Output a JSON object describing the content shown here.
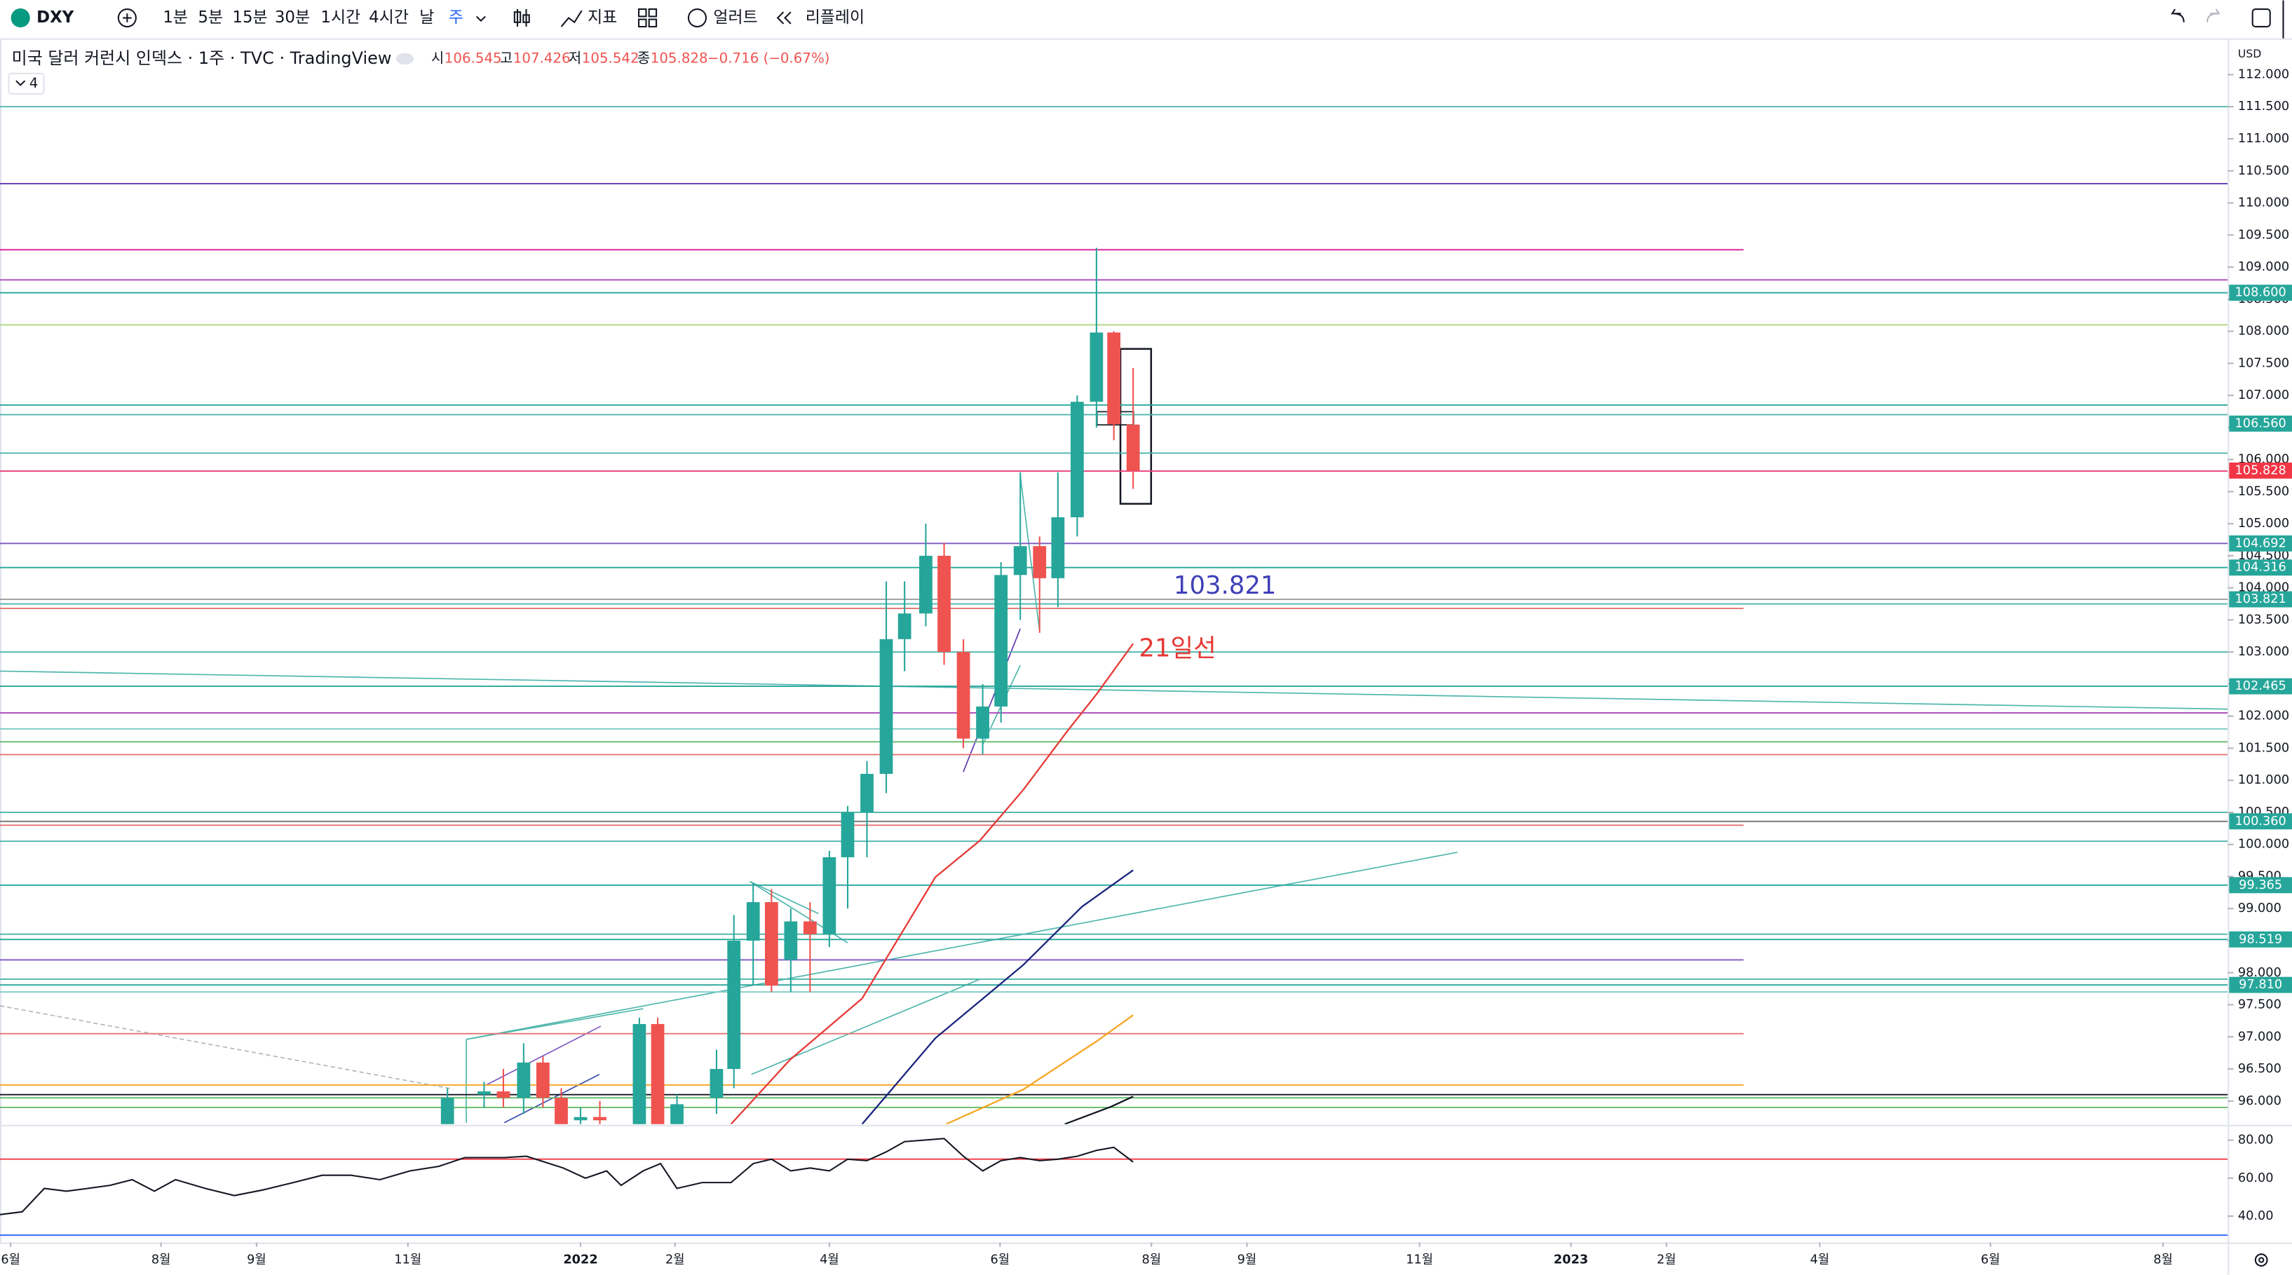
{
  "toolbar": {
    "symbol": "DXY",
    "intervals": [
      "1분",
      "5분",
      "15분",
      "30분",
      "1시간",
      "4시간",
      "날",
      "주"
    ],
    "selected": "주",
    "indicators": "지표",
    "alerts": "얼러트",
    "replay": "리플레이"
  },
  "legend": {
    "title": "미국 달러 커런시 인덱스 · 1주 · TVC · TradingView",
    "ohlc": [
      {
        "label": "시",
        "value": "106.545"
      },
      {
        "label": "고",
        "value": "107.426"
      },
      {
        "label": "저",
        "value": "105.542"
      },
      {
        "label": "종",
        "value": "105.828"
      }
    ],
    "change": "−0.716 (−0.67%)",
    "indicator_count": "4"
  },
  "chart_data": [
    {
      "type": "candlestick",
      "currency": "USD",
      "x": [
        2021.862,
        2021.9,
        2021.92,
        2021.941,
        2021.961,
        2021.98,
        2022,
        2022.02,
        2022.061,
        2022.08,
        2022.1,
        2022.141,
        2022.159,
        2022.179,
        2022.198,
        2022.218,
        2022.238,
        2022.258,
        2022.277,
        2022.297,
        2022.317,
        2022.336,
        2022.358,
        2022.377,
        2022.397,
        2022.417,
        2022.436,
        2022.456,
        2022.476,
        2022.495,
        2022.515,
        2022.535,
        2022.553,
        2022.573
      ],
      "open": [
        95.6,
        96.1,
        96.15,
        96.05,
        96.6,
        96.05,
        95.7,
        95.75,
        95.6,
        97.2,
        95.6,
        96.05,
        96.5,
        98.5,
        99.1,
        98.2,
        98.8,
        98.6,
        99.8,
        100.5,
        101.1,
        103.2,
        103.6,
        104.5,
        103.0,
        101.65,
        102.15,
        104.2,
        104.65,
        104.15,
        105.1,
        106.9,
        107.98,
        106.545
      ],
      "high": [
        96.2,
        96.3,
        96.5,
        96.9,
        96.7,
        96.2,
        95.9,
        96.0,
        97.3,
        97.3,
        96.1,
        96.8,
        98.9,
        99.4,
        99.3,
        99.0,
        99.1,
        99.9,
        100.6,
        101.3,
        104.1,
        104.1,
        105.0,
        104.7,
        103.2,
        102.5,
        104.4,
        105.8,
        104.8,
        105.8,
        107.0,
        109.3,
        108.0,
        107.426
      ],
      "low": [
        95.5,
        95.9,
        95.9,
        95.8,
        95.9,
        95.5,
        95.5,
        95.5,
        95.5,
        95.5,
        95.5,
        95.8,
        96.2,
        97.8,
        97.7,
        97.7,
        97.7,
        98.4,
        99.0,
        99.8,
        100.8,
        102.7,
        103.4,
        102.8,
        101.5,
        101.4,
        101.9,
        103.5,
        103.3,
        103.7,
        104.8,
        106.5,
        106.3,
        105.542
      ],
      "close": [
        96.05,
        96.15,
        96.05,
        96.6,
        96.05,
        95.6,
        95.75,
        95.7,
        97.2,
        95.6,
        95.95,
        96.5,
        98.5,
        99.1,
        97.8,
        98.8,
        98.6,
        99.8,
        100.5,
        101.1,
        103.2,
        103.6,
        104.5,
        103.0,
        101.65,
        102.15,
        104.2,
        104.65,
        104.15,
        105.1,
        106.9,
        107.98,
        106.55,
        105.828
      ],
      "colors": {
        "up": "#26a69a",
        "down": "#ef5350"
      },
      "overlays": [
        {
          "color": "#e53935",
          "x": [
            2022.156,
            2022.217,
            2022.292,
            2022.368,
            2022.414,
            2022.459,
            2022.505,
            2022.535,
            2022.573
          ],
          "values": [
            95.64,
            96.64,
            97.6,
            99.49,
            100.06,
            100.85,
            101.77,
            102.34,
            103.13
          ]
        },
        {
          "color": "#1a237e",
          "x": [
            2022.292,
            2022.368,
            2022.459,
            2022.52,
            2022.573
          ],
          "values": [
            95.64,
            96.98,
            98.12,
            99.03,
            99.6
          ]
        },
        {
          "color": "#f5a623",
          "x": [
            2022.379,
            2022.459,
            2022.535,
            2022.573
          ],
          "values": [
            95.64,
            96.18,
            96.93,
            97.34
          ]
        },
        {
          "color": "#131722",
          "x": [
            2022.502,
            2022.55,
            2022.573
          ],
          "values": [
            95.64,
            95.91,
            96.07
          ]
        }
      ],
      "levels": [
        {
          "value": 111.5,
          "color": "#4db6ac"
        },
        {
          "value": 110.3,
          "color": "#5e35b1"
        },
        {
          "value": 109.27,
          "color": "#d81b9a",
          "end": 2023.206
        },
        {
          "value": 108.8,
          "color": "#ab47bc"
        },
        {
          "value": 108.6,
          "color": "#26a69a"
        },
        {
          "value": 108.1,
          "color": "#aed581"
        },
        {
          "value": 106.85,
          "color": "#26a69a"
        },
        {
          "value": 106.7,
          "color": "#4db6ac"
        },
        {
          "value": 106.1,
          "color": "#4db6ac"
        },
        {
          "value": 105.82,
          "color": "#ec407a"
        },
        {
          "value": 104.692,
          "color": "#7e57c2"
        },
        {
          "value": 104.316,
          "color": "#26a69a"
        },
        {
          "value": 103.82,
          "color": "#9e9e9e"
        },
        {
          "value": 103.75,
          "color": "#4db6ac"
        },
        {
          "value": 103.68,
          "color": "#e57373",
          "end": 2023.206
        },
        {
          "value": 103.0,
          "color": "#4db6ac"
        },
        {
          "value": 102.465,
          "color": "#26a69a"
        },
        {
          "value": 102.05,
          "color": "#ab47bc"
        },
        {
          "value": 101.8,
          "color": "#80cbc4"
        },
        {
          "value": 101.6,
          "color": "#66bb6a"
        },
        {
          "value": 101.4,
          "color": "#e57373"
        },
        {
          "value": 100.5,
          "color": "#4db6ac"
        },
        {
          "value": 100.36,
          "color": "#757575"
        },
        {
          "value": 100.3,
          "color": "#e57373",
          "end": 2023.206
        },
        {
          "value": 100.05,
          "color": "#4db6ac"
        },
        {
          "value": 99.365,
          "color": "#26a69a"
        },
        {
          "value": 98.6,
          "color": "#4db6ac"
        },
        {
          "value": 98.519,
          "color": "#26a69a"
        },
        {
          "value": 98.2,
          "color": "#7e57c2",
          "end": 2023.206
        },
        {
          "value": 97.9,
          "color": "#4db6ac"
        },
        {
          "value": 97.81,
          "color": "#26a69a"
        },
        {
          "value": 97.7,
          "color": "#80cbc4"
        },
        {
          "value": 97.05,
          "color": "#e57373",
          "end": 2023.206
        },
        {
          "value": 96.25,
          "color": "#f5a623",
          "end": 2023.206
        },
        {
          "value": 96.1,
          "color": "#131722"
        },
        {
          "value": 96.05,
          "color": "#66bb6a"
        },
        {
          "value": 95.9,
          "color": "#66bb6a"
        }
      ],
      "price_labels": [
        {
          "value": 108.6,
          "label": "108.600",
          "color": "#26a69a"
        },
        {
          "value": 106.56,
          "label": "106.560",
          "color": "#26a69a"
        },
        {
          "value": 105.828,
          "label": "105.828",
          "color": "#f23645"
        },
        {
          "value": 104.692,
          "label": "104.692",
          "color": "#26a69a"
        },
        {
          "value": 104.316,
          "label": "104.316",
          "color": "#26a69a"
        },
        {
          "value": 103.821,
          "label": "103.821",
          "color": "#26a69a"
        },
        {
          "value": 102.465,
          "label": "102.465",
          "color": "#26a69a"
        },
        {
          "value": 100.36,
          "label": "100.360",
          "color": "#26a69a"
        },
        {
          "value": 99.365,
          "label": "99.365",
          "color": "#26a69a"
        },
        {
          "value": 98.519,
          "label": "98.519",
          "color": "#26a69a"
        },
        {
          "value": 97.81,
          "label": "97.810",
          "color": "#26a69a"
        }
      ],
      "annotations": [
        {
          "text": "103.821",
          "x": 2022.615,
          "y": 104.02,
          "color": "#3f3fb8"
        },
        {
          "text": "21일선",
          "x": 2022.579,
          "y": 103.04,
          "color": "#e53935"
        }
      ],
      "xlim": [
        2021.398,
        2023.708
      ],
      "xticks": [
        {
          "value": 2021.409,
          "label": "6월"
        },
        {
          "value": 2021.565,
          "label": "8월"
        },
        {
          "value": 2021.664,
          "label": "9월"
        },
        {
          "value": 2021.821,
          "label": "11월"
        },
        2022,
        {
          "value": 2022.098,
          "label": "2월"
        },
        {
          "value": 2022.258,
          "label": "4월"
        },
        {
          "value": 2022.435,
          "label": "6월"
        },
        {
          "value": 2022.592,
          "label": "8월"
        },
        {
          "value": 2022.691,
          "label": "9월"
        },
        {
          "value": 2022.87,
          "label": "11월"
        },
        {
          "value": 2023.027,
          "label": "2023"
        },
        {
          "value": 2023.126,
          "label": "2월"
        },
        {
          "value": 2023.285,
          "label": "4월"
        },
        {
          "value": 2023.462,
          "label": "6월"
        },
        {
          "value": 2023.641,
          "label": "8월"
        }
      ],
      "ylim": [
        95.64,
        112.52
      ],
      "yticks": [
        {
          "value": 96,
          "label": "96.000"
        },
        {
          "value": 96.5,
          "label": "96.500"
        },
        {
          "value": 97,
          "label": "97.000"
        },
        {
          "value": 97.5,
          "label": "97.500"
        },
        {
          "value": 98,
          "label": "98.000"
        },
        {
          "value": 98.5,
          "label": "98.500"
        },
        {
          "value": 99,
          "label": "99.000"
        },
        {
          "value": 99.5,
          "label": "99.500"
        },
        {
          "value": 100,
          "label": "100.000"
        },
        {
          "value": 100.5,
          "label": "100.500"
        },
        {
          "value": 101,
          "label": "101.000"
        },
        {
          "value": 101.5,
          "label": "101.500"
        },
        {
          "value": 102,
          "label": "102.000"
        },
        {
          "value": 102.5,
          "label": "102.500"
        },
        {
          "value": 103,
          "label": "103.000"
        },
        {
          "value": 103.5,
          "label": "103.500"
        },
        {
          "value": 104,
          "label": "104.000"
        },
        {
          "value": 104.5,
          "label": "104.500"
        },
        {
          "value": 105,
          "label": "105.000"
        },
        {
          "value": 105.5,
          "label": "105.500"
        },
        {
          "value": 106,
          "label": "106.000"
        },
        {
          "value": 106.5,
          "label": "106.500"
        },
        {
          "value": 107,
          "label": "107.000"
        },
        {
          "value": 107.5,
          "label": "107.500"
        },
        {
          "value": 108,
          "label": "108.000"
        },
        {
          "value": 108.5,
          "label": "108.500"
        },
        {
          "value": 109,
          "label": "109.000"
        },
        {
          "value": 109.5,
          "label": "109.500"
        },
        {
          "value": 110,
          "label": "110.000"
        },
        {
          "value": 110.5,
          "label": "110.500"
        },
        {
          "value": 111,
          "label": "111.000"
        },
        {
          "value": 111.5,
          "label": "111.500"
        },
        {
          "value": 112,
          "label": "112.000"
        }
      ]
    },
    {
      "type": "line",
      "color": "#131722",
      "x": [
        2021.398,
        2021.421,
        2021.444,
        2021.467,
        2021.489,
        2021.512,
        2021.535,
        2021.558,
        2021.58,
        2021.611,
        2021.641,
        2021.671,
        2021.702,
        2021.732,
        2021.762,
        2021.792,
        2021.823,
        2021.853,
        2021.88,
        2021.921,
        2021.944,
        2021.982,
        2022.005,
        2022.027,
        2022.042,
        2022.065,
        2022.083,
        2022.1,
        2022.126,
        2022.156,
        2022.179,
        2022.198,
        2022.218,
        2022.238,
        2022.258,
        2022.277,
        2022.297,
        2022.317,
        2022.336,
        2022.377,
        2022.397,
        2022.417,
        2022.436,
        2022.456,
        2022.476,
        2022.495,
        2022.515,
        2022.535,
        2022.553,
        2022.573
      ],
      "values": [
        40.8,
        42.3,
        54.6,
        53.1,
        54.6,
        56.2,
        59.2,
        53.1,
        59.2,
        54.6,
        50.8,
        53.8,
        57.7,
        61.5,
        61.5,
        59.2,
        63.8,
        66.2,
        70.8,
        70.8,
        71.5,
        65.4,
        60.0,
        63.8,
        56.2,
        63.8,
        67.7,
        54.6,
        57.7,
        57.7,
        67.7,
        70.0,
        63.8,
        65.4,
        63.8,
        70.0,
        69.2,
        73.8,
        79.2,
        80.8,
        71.5,
        63.8,
        69.2,
        70.8,
        69.2,
        70.0,
        71.5,
        74.6,
        76.2,
        68.5
      ],
      "levels": [
        {
          "value": 70,
          "color": "#f23645"
        },
        {
          "value": 30,
          "color": "#2962ff"
        }
      ],
      "xlim": [
        2021.398,
        2023.708
      ],
      "ylim": [
        26.9,
        86.9
      ],
      "yticks": [
        {
          "value": 80,
          "label": "80.00"
        },
        {
          "value": 60,
          "label": "60.00"
        },
        {
          "value": 40,
          "label": "40.00"
        }
      ]
    }
  ]
}
